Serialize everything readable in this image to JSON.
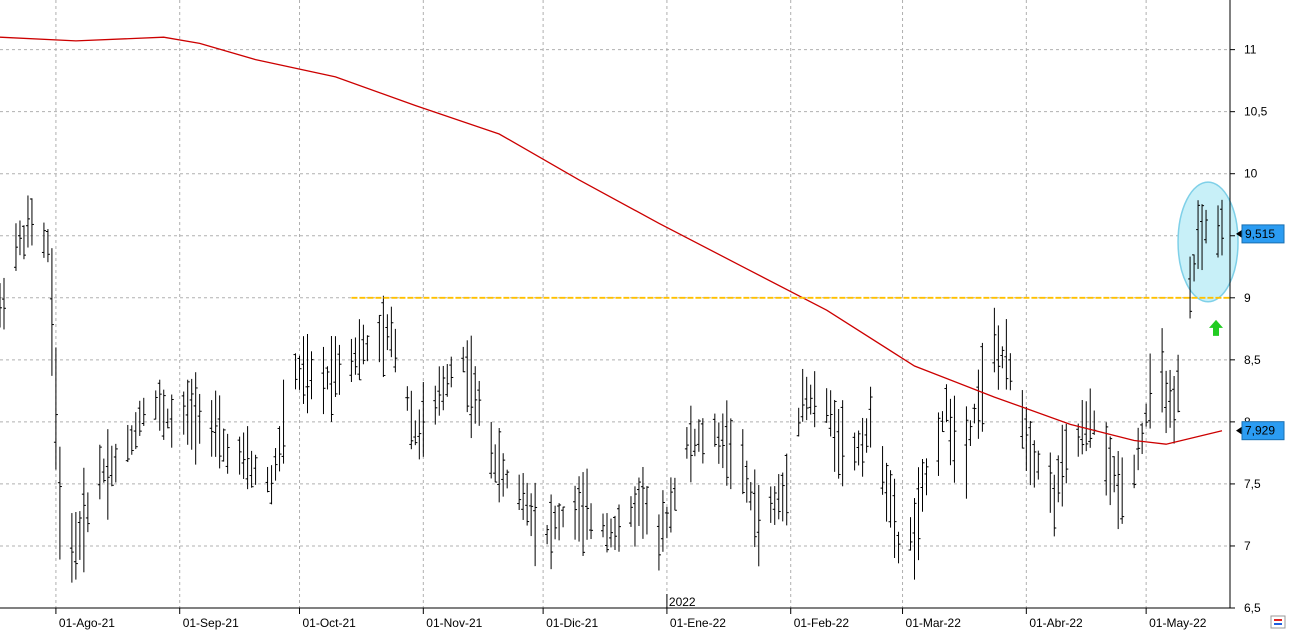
{
  "chart_data": {
    "type": "ohlc",
    "title": "",
    "xlabel": "",
    "ylabel": "",
    "ylim": [
      6.5,
      11.4
    ],
    "grid": true,
    "y_ticks": [
      "11",
      "10,5",
      "10",
      "9,5",
      "9",
      "8,5",
      "8",
      "7,5",
      "7",
      "6,5"
    ],
    "y_tick_values": [
      11,
      10.5,
      10,
      9.5,
      9,
      8.5,
      8,
      7.5,
      7,
      6.5
    ],
    "x_ticks": [
      "01-Ago-21",
      "01-Sep-21",
      "01-Oct-21",
      "01-Nov-21",
      "01-Dic-21",
      "01-Ene-22",
      "01-Feb-22",
      "01-Mar-22",
      "01-Abr-22",
      "01-May-22"
    ],
    "x_tick_dates": [
      "2021-08-01",
      "2021-09-01",
      "2021-10-01",
      "2021-11-01",
      "2021-12-01",
      "2022-01-01",
      "2022-02-01",
      "2022-03-01",
      "2022-04-01",
      "2022-05-01"
    ],
    "year_label": "2022",
    "x_start": "2021-07-18",
    "x_end": "2022-05-22",
    "price_anchors": [
      [
        "2021-07-18",
        8.9
      ],
      [
        "2021-07-22",
        9.4
      ],
      [
        "2021-07-26",
        9.6
      ],
      [
        "2021-07-30",
        9.4
      ],
      [
        "2021-08-02",
        7.0
      ],
      [
        "2021-08-06",
        7.0
      ],
      [
        "2021-08-12",
        7.6
      ],
      [
        "2021-08-18",
        7.7
      ],
      [
        "2021-08-24",
        8.2
      ],
      [
        "2021-08-30",
        8.0
      ],
      [
        "2021-09-06",
        8.1
      ],
      [
        "2021-09-12",
        7.8
      ],
      [
        "2021-09-20",
        7.6
      ],
      [
        "2021-09-24",
        7.5
      ],
      [
        "2021-09-30",
        8.4
      ],
      [
        "2021-10-06",
        8.3
      ],
      [
        "2021-10-12",
        8.5
      ],
      [
        "2021-10-18",
        8.6
      ],
      [
        "2021-10-24",
        8.7
      ],
      [
        "2021-10-26",
        8.5
      ],
      [
        "2021-10-30",
        7.9
      ],
      [
        "2021-11-04",
        8.1
      ],
      [
        "2021-11-10",
        8.6
      ],
      [
        "2021-11-14",
        8.2
      ],
      [
        "2021-11-20",
        7.6
      ],
      [
        "2021-11-26",
        7.4
      ],
      [
        "2021-12-02",
        7.1
      ],
      [
        "2021-12-08",
        7.3
      ],
      [
        "2021-12-14",
        7.2
      ],
      [
        "2021-12-20",
        7.1
      ],
      [
        "2021-12-26",
        7.4
      ],
      [
        "2021-12-30",
        7.0
      ],
      [
        "2022-01-06",
        7.8
      ],
      [
        "2022-01-12",
        7.9
      ],
      [
        "2022-01-18",
        7.8
      ],
      [
        "2022-01-24",
        7.2
      ],
      [
        "2022-01-30",
        7.4
      ],
      [
        "2022-02-04",
        8.2
      ],
      [
        "2022-02-10",
        8.1
      ],
      [
        "2022-02-16",
        7.7
      ],
      [
        "2022-02-22",
        8.0
      ],
      [
        "2022-02-28",
        7.0
      ],
      [
        "2022-03-04",
        7.1
      ],
      [
        "2022-03-08",
        7.7
      ],
      [
        "2022-03-12",
        8.1
      ],
      [
        "2022-03-16",
        7.7
      ],
      [
        "2022-03-20",
        8.2
      ],
      [
        "2022-03-24",
        8.6
      ],
      [
        "2022-03-28",
        8.4
      ],
      [
        "2022-04-02",
        7.8
      ],
      [
        "2022-04-08",
        7.4
      ],
      [
        "2022-04-12",
        7.8
      ],
      [
        "2022-04-18",
        8.0
      ],
      [
        "2022-04-22",
        7.6
      ],
      [
        "2022-04-26",
        7.4
      ],
      [
        "2022-04-30",
        7.9
      ],
      [
        "2022-05-04",
        8.5
      ],
      [
        "2022-05-08",
        8.0
      ],
      [
        "2022-05-12",
        9.0
      ],
      [
        "2022-05-14",
        9.5
      ],
      [
        "2022-05-18",
        9.6
      ],
      [
        "2022-05-20",
        9.515
      ]
    ],
    "moving_average": [
      [
        "2021-07-18",
        11.1
      ],
      [
        "2021-08-06",
        11.07
      ],
      [
        "2021-08-28",
        11.1
      ],
      [
        "2021-09-06",
        11.05
      ],
      [
        "2021-09-20",
        10.92
      ],
      [
        "2021-10-10",
        10.78
      ],
      [
        "2021-10-30",
        10.55
      ],
      [
        "2021-11-20",
        10.32
      ],
      [
        "2021-12-10",
        9.95
      ],
      [
        "2021-12-30",
        9.6
      ],
      [
        "2022-01-20",
        9.25
      ],
      [
        "2022-02-10",
        8.9
      ],
      [
        "2022-03-04",
        8.45
      ],
      [
        "2022-03-24",
        8.2
      ],
      [
        "2022-04-12",
        7.98
      ],
      [
        "2022-04-28",
        7.85
      ],
      [
        "2022-05-06",
        7.82
      ],
      [
        "2022-05-20",
        7.929
      ]
    ],
    "resistance_level": 9.0,
    "resistance_from": "2021-10-14",
    "resistance_to": "2022-05-20",
    "highlight_from": "2022-05-13",
    "highlight_to": "2022-05-20",
    "highlight_low": 9.0,
    "highlight_high": 9.9,
    "arrow_value": 8.75,
    "arrow_direction": "up",
    "last_price_label": "9,515",
    "last_price_value": 9.515,
    "ma_label": "7,929",
    "ma_value": 7.929,
    "colors": {
      "bars": "#000000",
      "moving_average": "#cc0000",
      "resistance": "#ffc000",
      "grid": "#b0b0b0",
      "highlight_fill": "#c8f0f8",
      "highlight_stroke": "#7fd0e8",
      "arrow": "#22cc22",
      "badge_fill": "#2b9cf2"
    }
  }
}
